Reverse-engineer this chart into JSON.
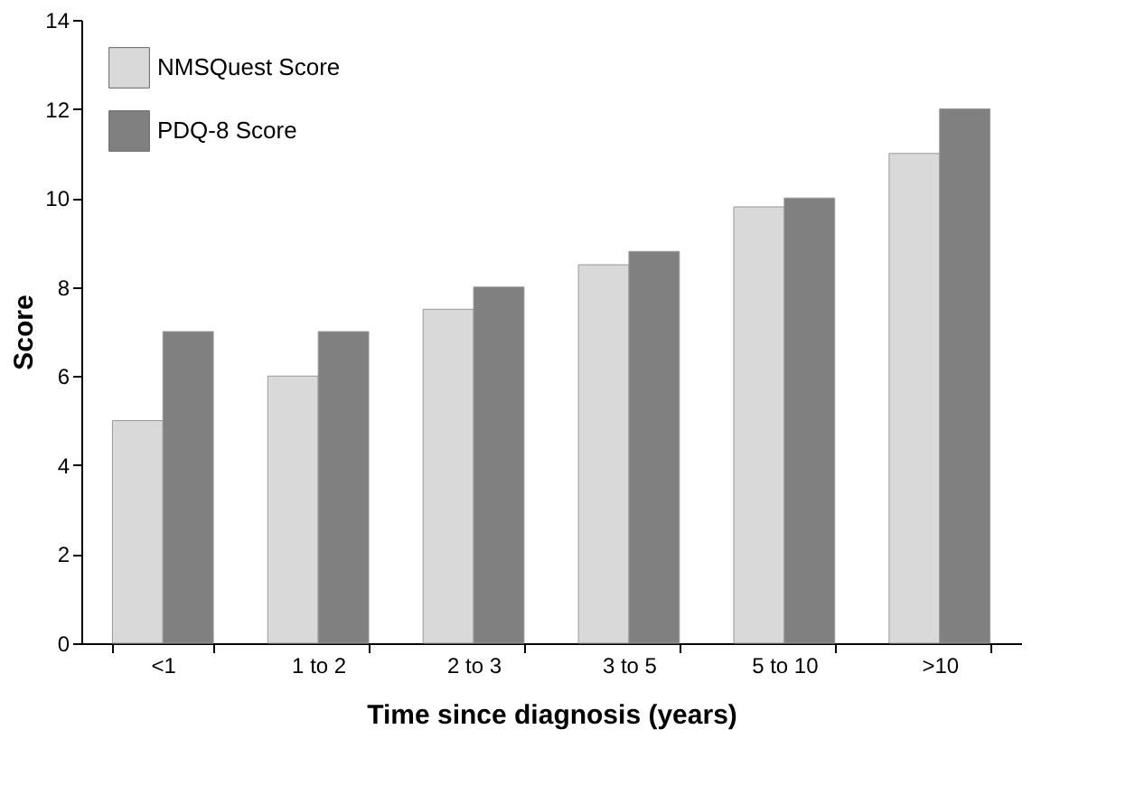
{
  "chart_data": {
    "type": "bar",
    "xlabel": "Time since diagnosis (years)",
    "ylabel": "Score",
    "categories": [
      "<1",
      "1 to 2",
      "2 to 3",
      "3 to 5",
      "5 to 10",
      ">10"
    ],
    "series": [
      {
        "name": "NMSQuest Score",
        "color": "#d9d9d9",
        "values": [
          5,
          6,
          7.5,
          8.5,
          9.8,
          11
        ]
      },
      {
        "name": "PDQ-8 Score",
        "color": "#808080",
        "values": [
          7,
          7,
          8,
          8.8,
          10,
          12
        ]
      }
    ],
    "ylim": [
      0,
      14
    ],
    "yticks": [
      0,
      2,
      4,
      6,
      8,
      10,
      12,
      14
    ],
    "grid": false,
    "legend": "top left"
  }
}
